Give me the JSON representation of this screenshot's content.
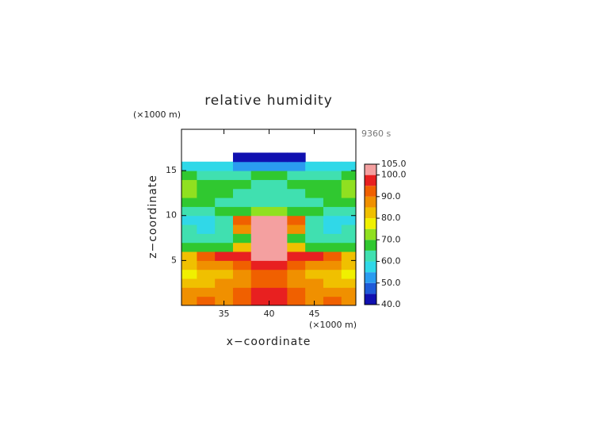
{
  "chart_data": {
    "type": "contour",
    "title": "relative humidity",
    "time_label": "9360 s",
    "xlabel": "x−coordinate",
    "ylabel": "z−coordinate",
    "x_unit": "(×1000 m)",
    "y_unit": "(×1000 m)",
    "x": [
      31,
      33,
      35,
      37,
      39,
      41,
      43,
      45,
      47,
      49
    ],
    "y": [
      0.5,
      1.5,
      2.5,
      3.5,
      4.5,
      5.5,
      6.5,
      7.5,
      8.5,
      9.5,
      10.5,
      11.5,
      12.5,
      13.5,
      14.5,
      15.5,
      16.5
    ],
    "z": [
      [
        88,
        90,
        88,
        92,
        96,
        96,
        92,
        88,
        90,
        88
      ],
      [
        85,
        85,
        88,
        90,
        95,
        95,
        90,
        88,
        85,
        85
      ],
      [
        82,
        82,
        85,
        88,
        92,
        92,
        88,
        85,
        82,
        82
      ],
      [
        78,
        80,
        82,
        85,
        90,
        90,
        85,
        82,
        80,
        78
      ],
      [
        80,
        85,
        88,
        92,
        98,
        98,
        92,
        88,
        85,
        80
      ],
      [
        82,
        90,
        95,
        97,
        102,
        102,
        97,
        95,
        90,
        82
      ],
      [
        68,
        65,
        66,
        80,
        102,
        102,
        80,
        66,
        65,
        68
      ],
      [
        62,
        60,
        62,
        68,
        102,
        102,
        68,
        62,
        60,
        62
      ],
      [
        60,
        58,
        60,
        85,
        102,
        102,
        85,
        60,
        58,
        60
      ],
      [
        58,
        58,
        62,
        90,
        102,
        102,
        90,
        62,
        58,
        58
      ],
      [
        60,
        62,
        65,
        68,
        72,
        72,
        68,
        65,
        62,
        60
      ],
      [
        66,
        65,
        64,
        62,
        60,
        60,
        62,
        64,
        65,
        66
      ],
      [
        72,
        68,
        66,
        64,
        62,
        62,
        64,
        66,
        68,
        72
      ],
      [
        70,
        68,
        66,
        65,
        64,
        64,
        65,
        66,
        68,
        70
      ],
      [
        66,
        64,
        62,
        64,
        66,
        66,
        64,
        62,
        64,
        66
      ],
      [
        58,
        58,
        55,
        52,
        50,
        50,
        52,
        55,
        58,
        58
      ],
      [
        null,
        null,
        null,
        44,
        42,
        42,
        44,
        null,
        null,
        null
      ]
    ],
    "levels": [
      40,
      45,
      50,
      55,
      60,
      65,
      70,
      75,
      80,
      85,
      90,
      95,
      100,
      105
    ],
    "colors": [
      "#1010b0",
      "#1e5ad8",
      "#2a9cf0",
      "#30d8e8",
      "#40e0b0",
      "#30c830",
      "#90e020",
      "#f0f000",
      "#f0c000",
      "#f09000",
      "#f06000",
      "#e82020",
      "#f4a0a0"
    ],
    "xlim": [
      30.3,
      49.6
    ],
    "ylim": [
      0,
      19.6
    ],
    "xticks": [
      35,
      40,
      45
    ],
    "yticks": [
      5,
      10,
      15
    ],
    "colorbar_ticks": [
      {
        "value": 105,
        "label": "105.0"
      },
      {
        "value": 100,
        "label": "100.0"
      },
      {
        "value": 90,
        "label": "90.0"
      },
      {
        "value": 80,
        "label": "80.0"
      },
      {
        "value": 70,
        "label": "70.0"
      },
      {
        "value": 60,
        "label": "60.0"
      },
      {
        "value": 50,
        "label": "50.0"
      },
      {
        "value": 40,
        "label": "40.0"
      }
    ]
  }
}
